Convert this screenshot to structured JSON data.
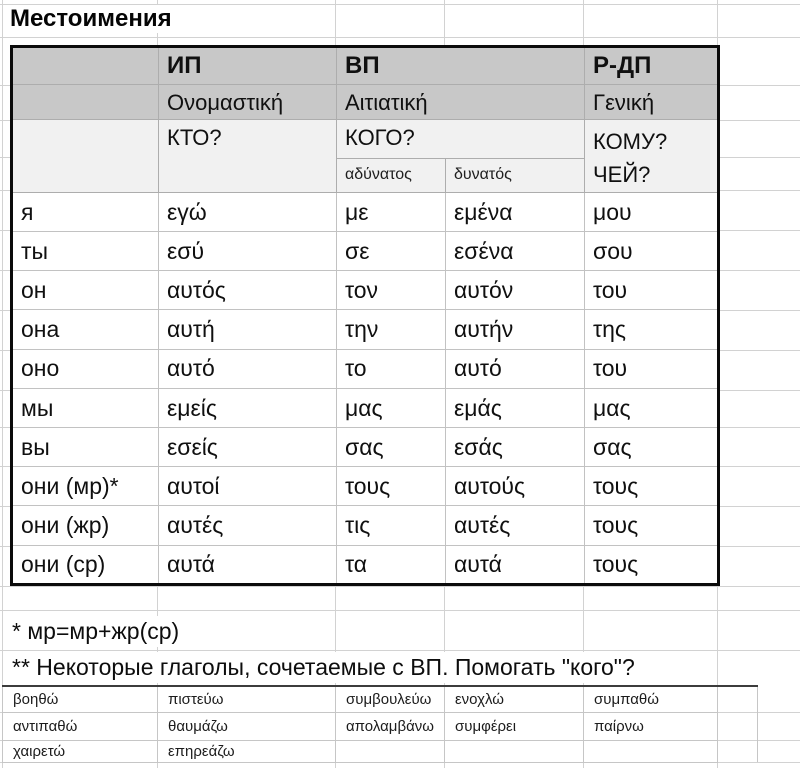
{
  "main": {
    "title": "Местоимения",
    "headers": {
      "ip": "ИП",
      "vp": "ВП",
      "rdp": "Р-ДП",
      "ip_greek": "Ονομαστική",
      "vp_greek": "Αιτιατική",
      "rdp_greek": "Γενική",
      "ip_q": "КТО?",
      "vp_q": "КОГО?",
      "rdp_q1": "КОМУ?",
      "rdp_q2": "ЧЕЙ?",
      "weak": "αδύνατος",
      "strong": "δυνατός"
    },
    "rows": [
      [
        "я",
        "εγώ",
        "με",
        "εμένα",
        "μου"
      ],
      [
        "ты",
        "εσύ",
        "σε",
        "εσένα",
        "σου"
      ],
      [
        "он",
        "αυτός",
        "τον",
        "αυτόν",
        "του"
      ],
      [
        "она",
        "αυτή",
        "την",
        "αυτήν",
        "της"
      ],
      [
        "оно",
        "αυτό",
        "το",
        "αυτό",
        "του"
      ],
      [
        "мы",
        "εμείς",
        "μας",
        "εμάς",
        "μας"
      ],
      [
        "вы",
        "εσείς",
        "σας",
        "εσάς",
        "σας"
      ],
      [
        "они (мр)*",
        "αυτοί",
        "τους",
        "αυτούς",
        "τους"
      ],
      [
        "они (жр)",
        "αυτές",
        "τις",
        "αυτές",
        "τους"
      ],
      [
        "они (ср)",
        "αυτά",
        "τα",
        "αυτά",
        "τους"
      ]
    ],
    "notes": {
      "note1": "* мр=мр+жр(ср)",
      "note2": "** Некоторые глаголы, сочетаемые с ВП. Помогать \"кого\"?"
    },
    "verbs": [
      [
        "βοηθώ",
        "πιστεύω",
        "συμβουλεύω",
        "ενοχλώ",
        "συμπαθώ"
      ],
      [
        "αντιπαθώ",
        "θαυμάζω",
        "απολαμβάνω",
        "συμφέρει",
        "παίρνω"
      ],
      [
        "χαιρετώ",
        "επηρεάζω",
        "",
        "",
        ""
      ]
    ],
    "colors": {
      "header_bg": "#c8c8c8",
      "question_bg": "#f1f1f1",
      "table_border": "#0b0b0b",
      "gridline": "#d2d2d2"
    }
  }
}
